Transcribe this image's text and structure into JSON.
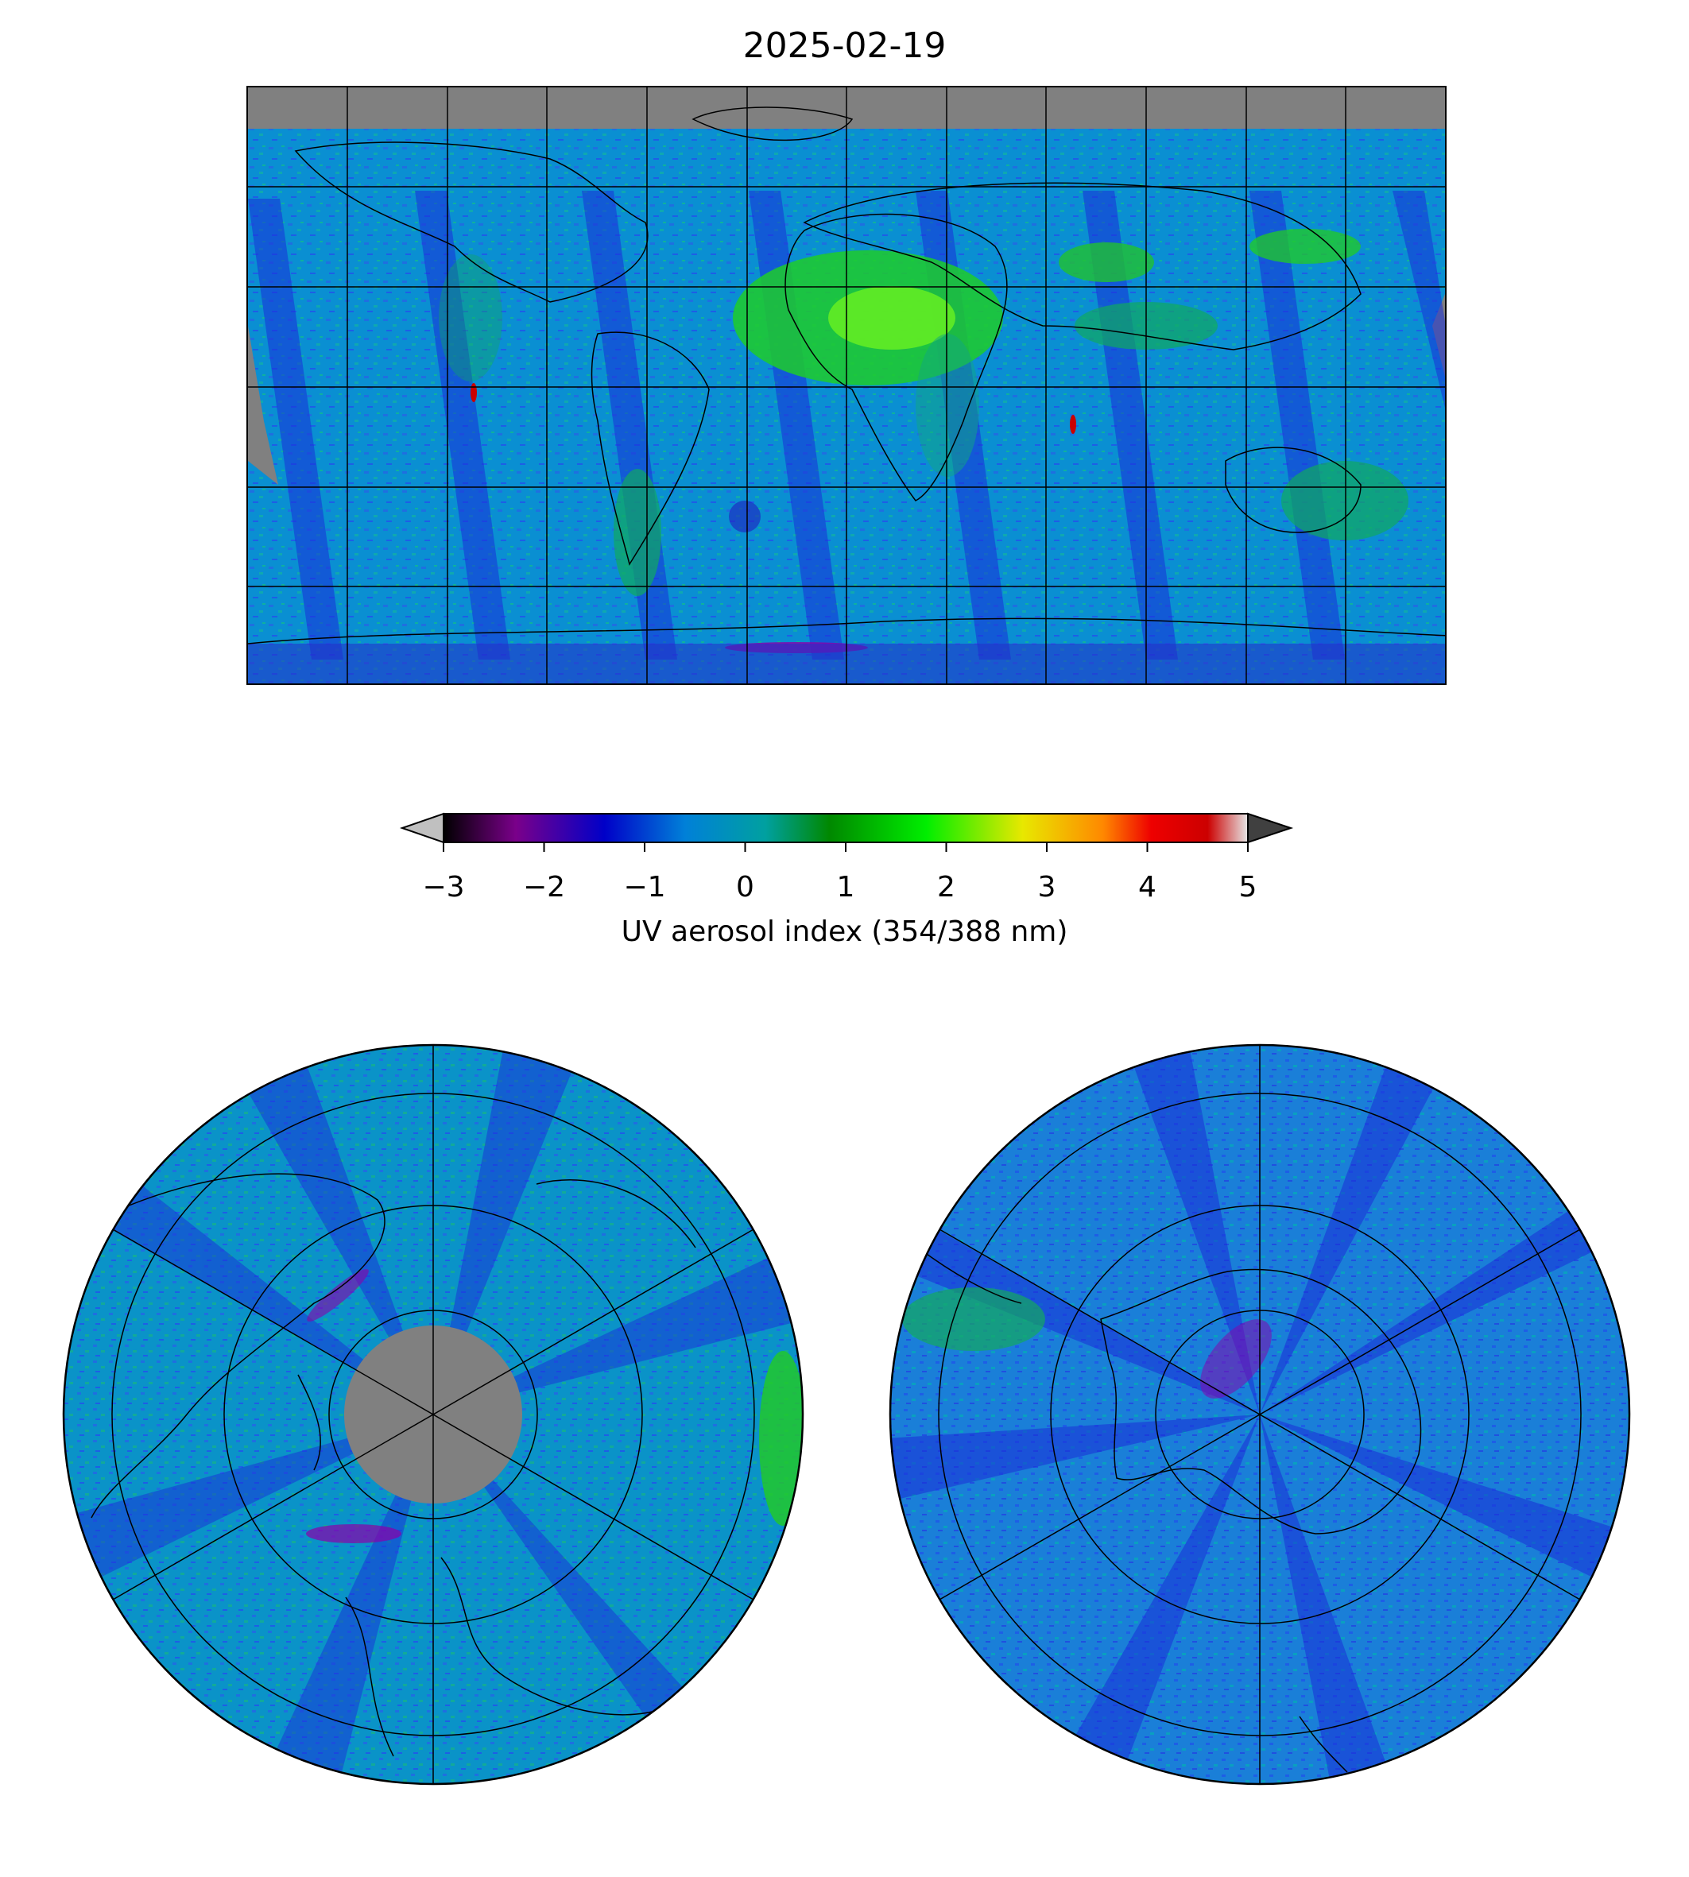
{
  "title": "2025-02-19",
  "colorbar": {
    "label": "UV aerosol index (354/388 nm)",
    "ticks": [
      "−3",
      "−2",
      "−1",
      "0",
      "1",
      "2",
      "3",
      "4",
      "5"
    ],
    "range": [
      -3,
      5
    ],
    "extend": "both",
    "colors": [
      "#000000",
      "#7a008a",
      "#0000c8",
      "#0080d8",
      "#00a0a0",
      "#008800",
      "#00ee00",
      "#e8e800",
      "#ff8800",
      "#ee0000",
      "#cc0000",
      "#e6e6e6"
    ],
    "under_color": "#c0c0c0",
    "over_color": "#404040"
  },
  "maps": {
    "global": {
      "projection": "equirectangular",
      "missing_color": "#808080",
      "dominant_color": "#0090d0"
    },
    "north_polar": {
      "projection": "north-polar-stereographic",
      "missing_color": "#808080"
    },
    "south_polar": {
      "projection": "south-polar-stereographic"
    }
  }
}
